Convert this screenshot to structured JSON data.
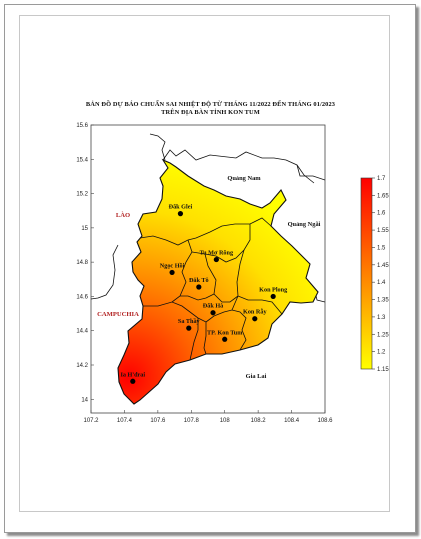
{
  "title": {
    "line1": "BẢN ĐỒ DỰ BÁO CHUẨN SAI NHIỆT ĐỘ TỪ THÁNG 11/2022 ĐẾN THÁNG 01/2023",
    "line2": "TRÊN ĐỊA BÀN TỈNH KON TUM"
  },
  "axes": {
    "x_ticks": [
      "107.2",
      "107.4",
      "107.6",
      "107.8",
      "108",
      "108.2",
      "108.4",
      "108.6"
    ],
    "y_ticks": [
      "15.6",
      "15.4",
      "15.2",
      "15",
      "14.8",
      "14.6",
      "14.4",
      "14.2",
      "14"
    ],
    "xlim": [
      107.2,
      108.6
    ],
    "ylim": [
      13.92,
      15.6
    ]
  },
  "colorbar": {
    "min": 1.15,
    "max": 1.7,
    "ticks": [
      "1.7",
      "1.65",
      "1.6",
      "1.55",
      "1.5",
      "1.45",
      "1.4",
      "1.35",
      "1.3",
      "1.25",
      "1.2",
      "1.15"
    ],
    "colors": [
      "#ff0000",
      "#ff8000",
      "#ffff00"
    ]
  },
  "regions": {
    "quang_nam": "Quảng Nam",
    "quang_ngai": "Quảng Ngãi",
    "gia_lai": "Gia Lai",
    "lao": "LÀO",
    "campuchia": "CAMPUCHIA"
  },
  "places": [
    {
      "name": "Đăk Glei",
      "lon": 107.735,
      "lat": 15.083
    },
    {
      "name": "Tu Mơ Rông",
      "lon": 107.95,
      "lat": 14.815
    },
    {
      "name": "Ngọc Hồi",
      "lon": 107.685,
      "lat": 14.74
    },
    {
      "name": "Đăk Tô",
      "lon": 107.845,
      "lat": 14.655
    },
    {
      "name": "Kon Plong",
      "lon": 108.29,
      "lat": 14.6
    },
    {
      "name": "Đăk Hà",
      "lon": 107.93,
      "lat": 14.505
    },
    {
      "name": "Kon Rẫy",
      "lon": 108.18,
      "lat": 14.47
    },
    {
      "name": "Sa Thầy",
      "lon": 107.785,
      "lat": 14.415
    },
    {
      "name": "TP. Kon Tum",
      "lon": 108.0,
      "lat": 14.35
    },
    {
      "name": "Ia H'drai",
      "lon": 107.45,
      "lat": 14.105
    }
  ]
}
